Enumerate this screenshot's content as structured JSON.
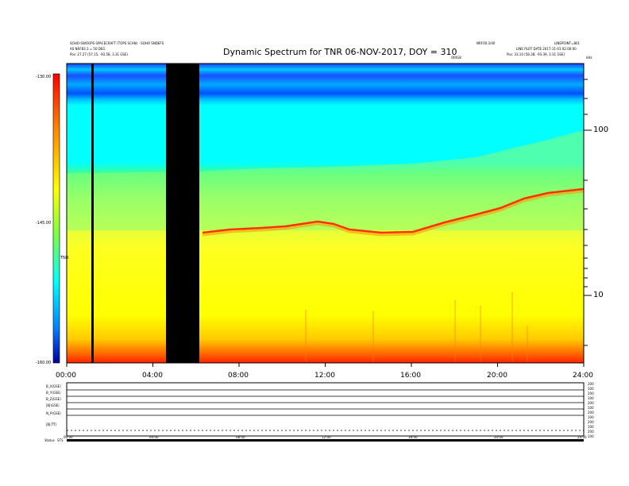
{
  "header": {
    "left_line1": "SOHO-SWOOPS SPACECRAFT (TOPS SCAN) - SOHO SNDEFS",
    "left_line2": "AS NRF83.3 = 50 DEG",
    "left_line3": "Pos:  27.27 (57.15, -93.58, 3.31 GSE)",
    "right_line1": "NRF00.3/40",
    "right_line2": "LINE PLOT DATE  2017-11-01 02:00:00",
    "right_line3": "Pos:  33.10 (58.38, -93.39, 3.31 GSE)",
    "right_corner": "LINEPOINT=801",
    "right_small": "ORIG8",
    "corner_label": "kHz"
  },
  "chart_data": {
    "type": "heatmap",
    "title": "Dynamic Spectrum for TNR 06-NOV-2017, DOY = 310",
    "xlabel": "",
    "ylabel": "",
    "x_ticks": [
      "00:00",
      "04:00",
      "08:00",
      "12:00",
      "16:00",
      "20:00",
      "24:00"
    ],
    "x_range_hours": [
      0,
      24
    ],
    "y_scale": "log",
    "y_ticks": [
      "100",
      "10"
    ],
    "colorbar": {
      "ticks": [
        "-130.00",
        "-145.00",
        "-160.00"
      ],
      "range": [
        -160,
        -130
      ],
      "label": "TNR",
      "colors": [
        "#ff0000",
        "#ff8000",
        "#ffff00",
        "#80ff40",
        "#00ffff",
        "#0080ff",
        "#0000a0"
      ]
    },
    "data_gaps_hours": [
      [
        1.15,
        1.25
      ],
      [
        4.6,
        6.1
      ]
    ]
  },
  "bottom_panel": {
    "labels": [
      "B_X(GSE)",
      "B_Y(GSE)",
      "B_Z(GSE)",
      "|B|(GSE)",
      "N_P(GSE)",
      "|B|(TT)",
      "Status"
    ],
    "right_ticks": [
      "200",
      "100",
      "200",
      "100",
      "200",
      "100",
      "200",
      "100",
      "200",
      "100",
      "200",
      "100"
    ],
    "x_ticks": [
      "00:00",
      "04:00",
      "08:00",
      "12:00",
      "16:00",
      "20:00",
      "24:00"
    ],
    "status_extra": "STS"
  }
}
